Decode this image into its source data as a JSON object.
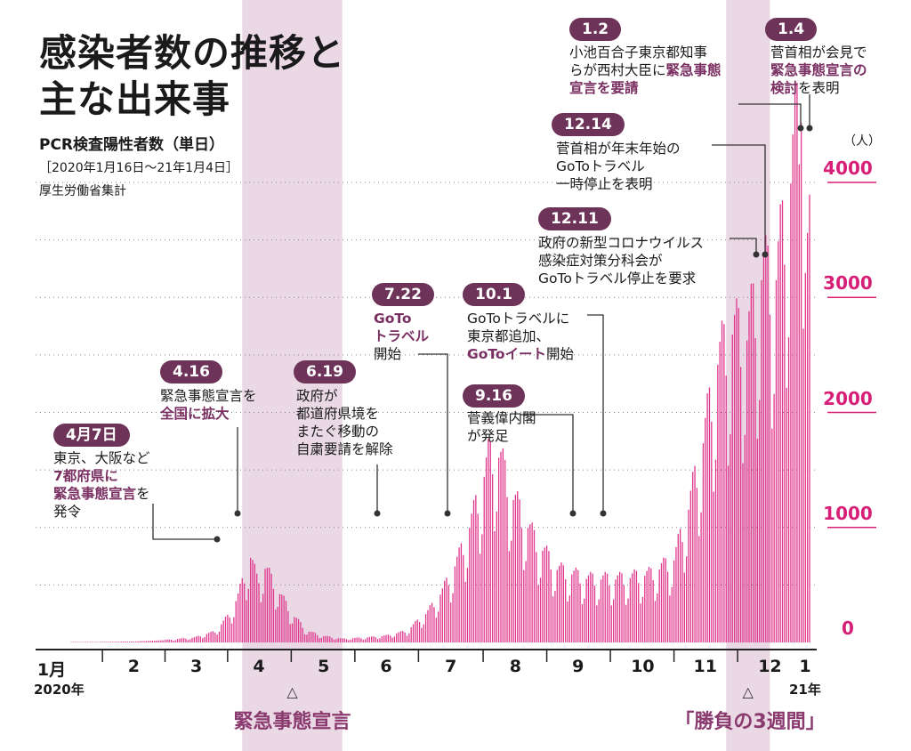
{
  "title": "感染者数の推移と\n主な出来事",
  "subtitle": "PCR検査陽性者数（単日）",
  "note_period": "［2020年1月16日～21年1月4日］",
  "note_source": "厚生労働省集計",
  "unit": "（人）",
  "colors": {
    "bar": "#e0358c",
    "shade": "#ead9e5",
    "badge": "#6e3358",
    "highlight": "#7a2f62",
    "axis_label": "#d81f78"
  },
  "shaded_periods": [
    {
      "label": "緊急事態宣言",
      "start": "2020-04-07",
      "end": "2020-05-25"
    },
    {
      "label": "「勝負の3週間」",
      "start": "2020-11-25",
      "end": "2020-12-16"
    }
  ],
  "events": [
    {
      "badge": "4月7日",
      "date": "2020-04-07",
      "lines": [
        [
          {
            "t": "東京、大阪など"
          }
        ],
        [
          {
            "t": "7都府県に",
            "h": true
          }
        ],
        [
          {
            "t": "緊急事態宣言",
            "h": true
          },
          {
            "t": "を"
          }
        ],
        [
          {
            "t": "発令"
          }
        ]
      ]
    },
    {
      "badge": "4.16",
      "date": "2020-04-16",
      "lines": [
        [
          {
            "t": "緊急事態宣言を"
          }
        ],
        [
          {
            "t": "全国に拡大",
            "h": true
          }
        ]
      ]
    },
    {
      "badge": "6.19",
      "date": "2020-06-19",
      "lines": [
        [
          {
            "t": "政府が"
          }
        ],
        [
          {
            "t": "都道府県境を"
          }
        ],
        [
          {
            "t": "またぐ移動の"
          }
        ],
        [
          {
            "t": "自粛要請を解除"
          }
        ]
      ]
    },
    {
      "badge": "7.22",
      "date": "2020-07-22",
      "lines": [
        [
          {
            "t": "GoTo",
            "h": true
          }
        ],
        [
          {
            "t": "トラベル",
            "h": true
          }
        ],
        [
          {
            "t": "開始"
          }
        ]
      ]
    },
    {
      "badge": "9.16",
      "date": "2020-09-16",
      "lines": [
        [
          {
            "t": "菅義偉内閣"
          }
        ],
        [
          {
            "t": "が発足"
          }
        ]
      ]
    },
    {
      "badge": "10.1",
      "date": "2020-10-01",
      "lines": [
        [
          {
            "t": "GoToトラベルに"
          }
        ],
        [
          {
            "t": "東京都追加、"
          }
        ],
        [
          {
            "t": "GoToイート",
            "h": true
          },
          {
            "t": "開始"
          }
        ]
      ]
    },
    {
      "badge": "12.11",
      "date": "2020-12-11",
      "lines": [
        [
          {
            "t": "政府の新型コロナウイルス"
          }
        ],
        [
          {
            "t": "感染症対策分科会が"
          }
        ],
        [
          {
            "t": "GoToトラベル停止を要求"
          }
        ]
      ]
    },
    {
      "badge": "12.14",
      "date": "2020-12-14",
      "lines": [
        [
          {
            "t": "菅首相が年末年始の"
          }
        ],
        [
          {
            "t": "GoToトラベル"
          }
        ],
        [
          {
            "t": "一時停止を表明"
          }
        ]
      ]
    },
    {
      "badge": "1.2",
      "date": "2021-01-02",
      "lines": [
        [
          {
            "t": "小池百合子東京都知事"
          }
        ],
        [
          {
            "t": "らが西村大臣に"
          },
          {
            "t": "緊急事態",
            "h": true
          }
        ],
        [
          {
            "t": "宣言を要請",
            "h": true
          }
        ]
      ]
    },
    {
      "badge": "1.4",
      "date": "2021-01-04",
      "lines": [
        [
          {
            "t": "菅首相が会見で"
          }
        ],
        [
          {
            "t": "緊急事態宣言の",
            "h": true
          }
        ],
        [
          {
            "t": "検討",
            "h": true
          },
          {
            "t": "を表明"
          }
        ]
      ]
    }
  ],
  "chart_data": {
    "type": "bar",
    "title": "感染者数の推移と主な出来事",
    "ylabel": "（人）",
    "ylim": [
      0,
      4300
    ],
    "yticks": [
      0,
      1000,
      2000,
      3000,
      4000
    ],
    "x_start": "2020-01-16",
    "x_end": "2021-01-04",
    "x_tick_labels": [
      {
        "label": "1",
        "suffix": "月",
        "year": "2020年",
        "date": "2020-01-16"
      },
      {
        "label": "2",
        "date": "2020-02-15"
      },
      {
        "label": "3",
        "date": "2020-03-16"
      },
      {
        "label": "4",
        "date": "2020-04-15"
      },
      {
        "label": "5",
        "date": "2020-05-16"
      },
      {
        "label": "6",
        "date": "2020-06-15"
      },
      {
        "label": "7",
        "date": "2020-07-16"
      },
      {
        "label": "8",
        "date": "2020-08-16"
      },
      {
        "label": "9",
        "date": "2020-09-15"
      },
      {
        "label": "10",
        "date": "2020-10-16"
      },
      {
        "label": "11",
        "date": "2020-11-15"
      },
      {
        "label": "12",
        "date": "2020-12-16"
      },
      {
        "label": "1",
        "year": "21年",
        "date": "2021-01-03"
      }
    ],
    "daily_anchor_values": [
      [
        "2020-01-16",
        1
      ],
      [
        "2020-02-15",
        8
      ],
      [
        "2020-03-01",
        20
      ],
      [
        "2020-03-15",
        40
      ],
      [
        "2020-03-25",
        90
      ],
      [
        "2020-04-01",
        230
      ],
      [
        "2020-04-05",
        380
      ],
      [
        "2020-04-11",
        700
      ],
      [
        "2020-04-14",
        520
      ],
      [
        "2020-04-18",
        610
      ],
      [
        "2020-04-25",
        400
      ],
      [
        "2020-05-01",
        230
      ],
      [
        "2020-05-08",
        95
      ],
      [
        "2020-05-15",
        55
      ],
      [
        "2020-05-25",
        30
      ],
      [
        "2020-06-05",
        40
      ],
      [
        "2020-06-15",
        55
      ],
      [
        "2020-06-25",
        95
      ],
      [
        "2020-07-05",
        250
      ],
      [
        "2020-07-12",
        420
      ],
      [
        "2020-07-20",
        700
      ],
      [
        "2020-07-27",
        1050
      ],
      [
        "2020-08-03",
        1500
      ],
      [
        "2020-08-07",
        1580
      ],
      [
        "2020-08-15",
        1180
      ],
      [
        "2020-08-25",
        850
      ],
      [
        "2020-09-05",
        600
      ],
      [
        "2020-09-20",
        520
      ],
      [
        "2020-10-05",
        520
      ],
      [
        "2020-10-20",
        560
      ],
      [
        "2020-10-31",
        680
      ],
      [
        "2020-11-07",
        1100
      ],
      [
        "2020-11-14",
        1650
      ],
      [
        "2020-11-21",
        2300
      ],
      [
        "2020-11-28",
        2550
      ],
      [
        "2020-12-05",
        2500
      ],
      [
        "2020-12-12",
        3000
      ],
      [
        "2020-12-19",
        3000
      ],
      [
        "2020-12-26",
        3800
      ],
      [
        "2020-12-31",
        4520
      ],
      [
        "2021-01-02",
        3060
      ],
      [
        "2021-01-04",
        3300
      ]
    ]
  },
  "labels": {
    "shade1": "緊急事態宣言",
    "shade2": "「勝負の3週間」",
    "tri": "△"
  }
}
